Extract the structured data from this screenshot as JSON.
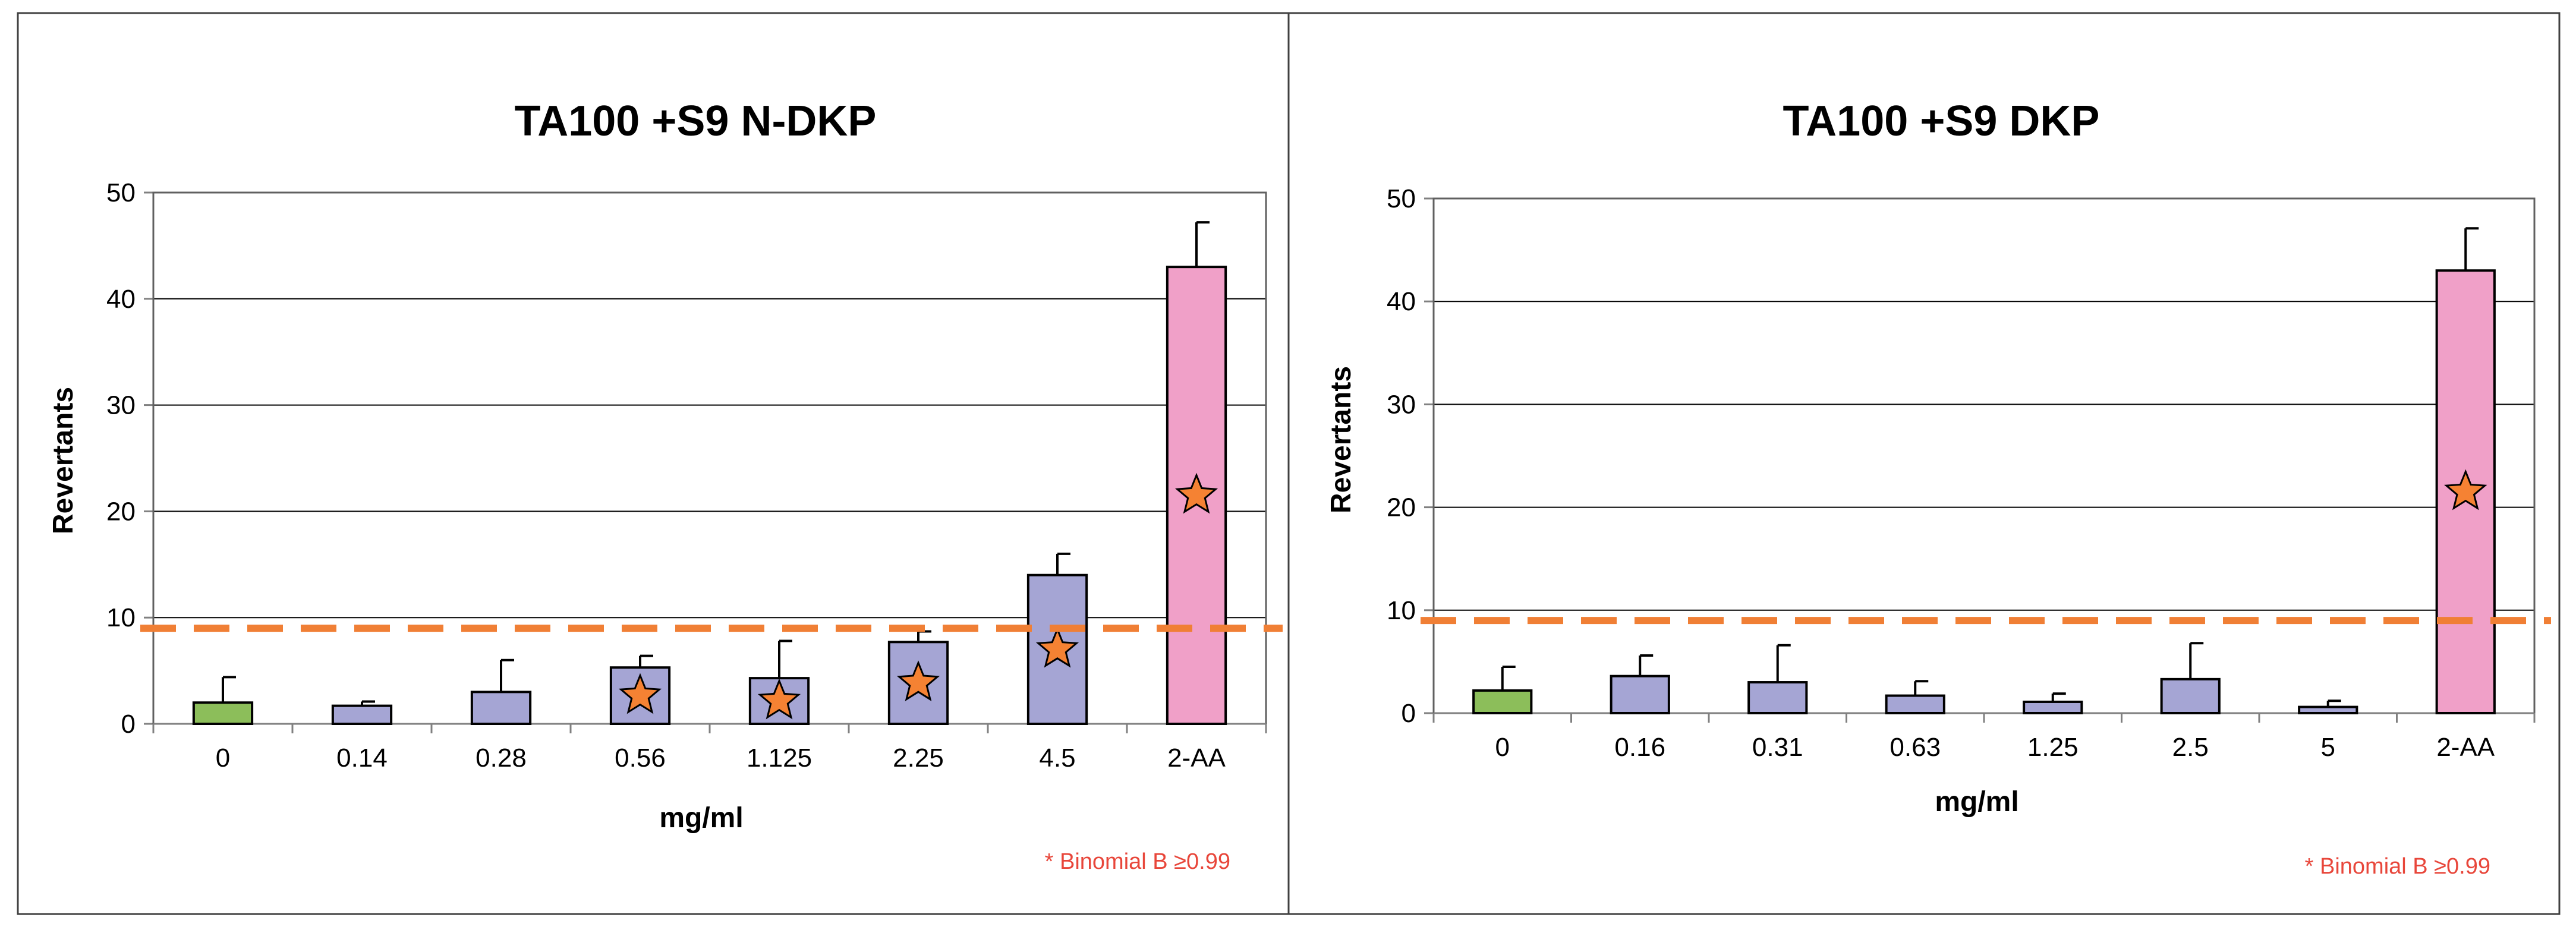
{
  "colors": {
    "control": "#8CBE5A",
    "treatment": "#A5A5D4",
    "positive": "#F0A0C8",
    "star": "#F58233",
    "cutoff": "#F07F35",
    "note": "#E8463A"
  },
  "chart_data": [
    {
      "type": "bar",
      "title": "TA100 +S9 N-DKP",
      "xlabel": "mg/ml",
      "ylabel": "Revertants",
      "ylim": [
        0,
        50
      ],
      "yticks": [
        0,
        10,
        20,
        30,
        40,
        50
      ],
      "grid": true,
      "categories": [
        "0",
        "0.14",
        "0.28",
        "0.56",
        "1.125",
        "2.25",
        "4.5",
        "2-AA"
      ],
      "values": [
        2,
        1.7,
        3,
        5.3,
        4.3,
        7.7,
        14,
        43
      ],
      "errors": [
        2.4,
        0.4,
        3,
        1.1,
        3.5,
        1,
        2,
        4.2
      ],
      "bar_kinds": [
        "control",
        "treatment",
        "treatment",
        "treatment",
        "treatment",
        "treatment",
        "treatment",
        "positive"
      ],
      "significant": [
        false,
        false,
        false,
        true,
        true,
        true,
        true,
        true
      ],
      "threshold": 9,
      "note": "*  Binomial B ≥0.99"
    },
    {
      "type": "bar",
      "title": "TA100 +S9 DKP",
      "xlabel": "mg/ml",
      "ylabel": "Revertants",
      "ylim": [
        0,
        50
      ],
      "yticks": [
        0,
        10,
        20,
        30,
        40,
        50
      ],
      "grid": true,
      "categories": [
        "0",
        "0.16",
        "0.31",
        "0.63",
        "1.25",
        "2.5",
        "5",
        "2-AA"
      ],
      "values": [
        2.2,
        3.6,
        3,
        1.7,
        1.1,
        3.3,
        0.6,
        43
      ],
      "errors": [
        2.3,
        2,
        3.6,
        1.4,
        0.8,
        3.5,
        0.6,
        4.1
      ],
      "bar_kinds": [
        "control",
        "treatment",
        "treatment",
        "treatment",
        "treatment",
        "treatment",
        "treatment",
        "positive"
      ],
      "significant": [
        false,
        false,
        false,
        false,
        false,
        false,
        false,
        true
      ],
      "threshold": 9,
      "note": "*  Binomial B ≥0.99"
    }
  ]
}
